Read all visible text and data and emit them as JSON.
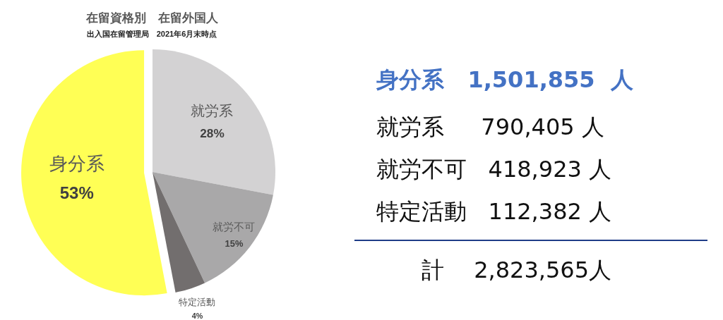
{
  "chart_data": [
    {
      "type": "pie",
      "title": "在留資格別　在留外国人",
      "subtitle": "出入国在留管理局　2021年6月末時点",
      "categories": [
        "就労系",
        "就労不可",
        "特定活動",
        "身分系"
      ],
      "values": [
        28,
        15,
        4,
        53
      ],
      "colors": [
        "#d3d2d3",
        "#a9a8a9",
        "#726e6e",
        "#ffff55"
      ],
      "value_labels": [
        "28%",
        "15%",
        "4%",
        "53%"
      ]
    },
    {
      "type": "other",
      "annotations": [
        "身分系   1,501,855  人",
        "就労系　  790,405 人",
        "就労不可   418,923 人",
        "特定活動   112,382 人",
        "計　 2,823,565人"
      ]
    }
  ]
}
